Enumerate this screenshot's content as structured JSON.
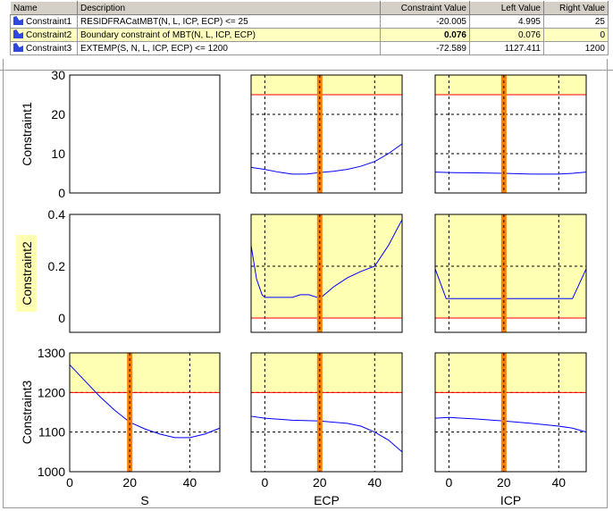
{
  "table": {
    "headers": [
      "Name",
      "Description",
      "Constraint Value",
      "Left Value",
      "Right Value"
    ],
    "rows": [
      {
        "name": "Constraint1",
        "description": "RESIDFRACatMBT(N, L, ICP, ECP) <= 25",
        "constraint_value": "-20.005",
        "left_value": "4.995",
        "right_value": "25"
      },
      {
        "name": "Constraint2",
        "description": "Boundary constraint of MBT(N, L, ICP, ECP)",
        "constraint_value": "0.076",
        "left_value": "0.076",
        "right_value": "0",
        "selected": true
      },
      {
        "name": "Constraint3",
        "description": "EXTEMP(S, N, L, ICP, ECP) <= 1200",
        "constraint_value": "-72.589",
        "left_value": "1127.411",
        "right_value": "1200"
      }
    ]
  },
  "colors": {
    "feasible_fill": "#ffffb4",
    "bound_line": "#ff0000",
    "curve": "#0000ff",
    "marker": "#ff8000",
    "selected_row": "#ffffc0"
  },
  "chart_data": {
    "type": "line",
    "grid": "dashed",
    "columns": [
      {
        "xlabel": "S",
        "xlim": [
          0,
          50
        ],
        "xticks": [
          0,
          20,
          40
        ],
        "marker": 20
      },
      {
        "xlabel": "ECP",
        "xlim": [
          -5,
          50
        ],
        "xticks": [
          0,
          20,
          40
        ],
        "marker": 20
      },
      {
        "xlabel": "ICP",
        "xlim": [
          -5,
          50
        ],
        "xticks": [
          0,
          20,
          40
        ],
        "marker": 20
      }
    ],
    "rows": [
      {
        "ylabel": "Constraint1",
        "ylim": [
          0,
          30
        ],
        "yticks": [
          0,
          10,
          20,
          30
        ],
        "bound": 25,
        "feasible_side": "above",
        "series": [
          null,
          {
            "x": [
              -5,
              0,
              5,
              10,
              15,
              20,
              25,
              30,
              35,
              40,
              45,
              50
            ],
            "y": [
              6.5,
              6,
              5.3,
              4.8,
              4.8,
              5.2,
              5.5,
              6,
              6.8,
              8,
              10,
              12.5
            ]
          },
          {
            "x": [
              -5,
              0,
              10,
              20,
              30,
              40,
              45,
              50
            ],
            "y": [
              5.3,
              5.2,
              5.1,
              5,
              4.8,
              4.8,
              5,
              5.3
            ]
          }
        ]
      },
      {
        "ylabel": "Constraint2",
        "ylabel_highlighted": true,
        "ylim": [
          -0.055,
          0.4
        ],
        "yticks": [
          0,
          0.2,
          0.4
        ],
        "bound": 0,
        "feasible_side": "above",
        "series": [
          null,
          {
            "x": [
              -5,
              -3,
              -1,
              0,
              5,
              10,
              13,
              16,
              19,
              20,
              25,
              30,
              35,
              40,
              45,
              50
            ],
            "y": [
              0.28,
              0.15,
              0.09,
              0.08,
              0.08,
              0.08,
              0.09,
              0.09,
              0.08,
              0.075,
              0.12,
              0.155,
              0.18,
              0.2,
              0.28,
              0.38
            ]
          },
          {
            "x": [
              -5,
              -1,
              45,
              50
            ],
            "y": [
              0.19,
              0.075,
              0.075,
              0.19
            ]
          }
        ]
      },
      {
        "ylabel": "Constraint3",
        "ylim": [
          1000,
          1300
        ],
        "yticks": [
          1000,
          1100,
          1200,
          1300
        ],
        "bound": 1200,
        "feasible_side": "above",
        "series": [
          {
            "x": [
              0,
              5,
              10,
              15,
              20,
              25,
              30,
              35,
              40,
              45,
              50
            ],
            "y": [
              1270,
              1230,
              1190,
              1155,
              1125,
              1108,
              1095,
              1086,
              1086,
              1095,
              1110
            ]
          },
          {
            "x": [
              -5,
              0,
              10,
              20,
              30,
              35,
              40,
              45,
              50
            ],
            "y": [
              1140,
              1135,
              1130,
              1128,
              1122,
              1115,
              1100,
              1080,
              1050
            ]
          },
          {
            "x": [
              -5,
              0,
              10,
              20,
              30,
              40,
              45,
              50
            ],
            "y": [
              1135,
              1137,
              1133,
              1128,
              1122,
              1115,
              1110,
              1100
            ]
          }
        ]
      }
    ]
  }
}
